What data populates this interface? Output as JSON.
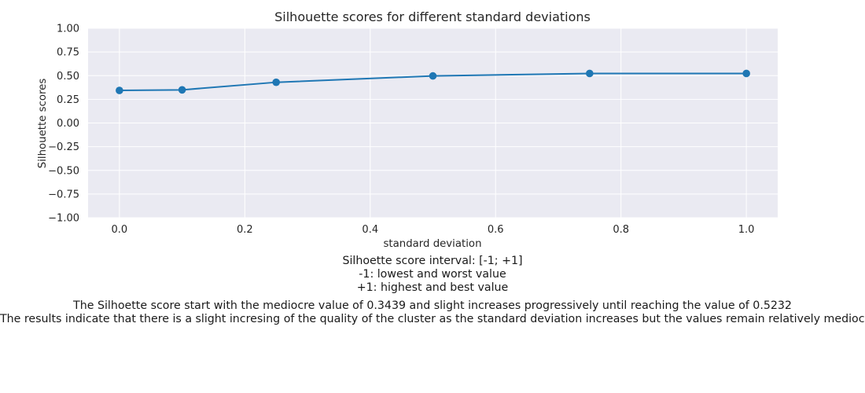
{
  "chart_data": {
    "type": "line",
    "title": "Silhouette scores for different standard deviations",
    "xlabel": "standard deviation",
    "ylabel": "Silhouette scores",
    "x": [
      0.0,
      0.1,
      0.25,
      0.5,
      0.75,
      1.0
    ],
    "series": [
      {
        "values": [
          0.3439,
          0.35,
          0.43,
          0.497,
          0.5232,
          0.5232
        ],
        "color": "#1f77b4",
        "marker": "circle"
      }
    ],
    "xlim": [
      -0.05,
      1.05
    ],
    "ylim": [
      -1.0,
      1.0
    ],
    "xticks": [
      0.0,
      0.2,
      0.4,
      0.6,
      0.8,
      1.0
    ],
    "xtick_labels": [
      "0.0",
      "0.2",
      "0.4",
      "0.6",
      "0.8",
      "1.0"
    ],
    "yticks": [
      -1.0,
      -0.75,
      -0.5,
      -0.25,
      0.0,
      0.25,
      0.5,
      0.75,
      1.0
    ],
    "ytick_labels": [
      "−1.00",
      "−0.75",
      "−0.50",
      "−0.25",
      "0.00",
      "0.25",
      "0.50",
      "0.75",
      "1.00"
    ],
    "grid": true,
    "background": "#eaeaf2",
    "grid_color": "#ffffff"
  },
  "caption": {
    "interval_lines": [
      "Silhoette score interval: [-1; +1]",
      "-1: lowest and worst value",
      "+1: highest and best value"
    ],
    "summary_lines": [
      "The Silhoette score start with the mediocre value of 0.3439 and slight increases progressively until reaching the value of 0.5232",
      "The results indicate that there is a slight incresing of the quality of the cluster as the standard deviation increases but the values remain relatively mediocre"
    ]
  }
}
